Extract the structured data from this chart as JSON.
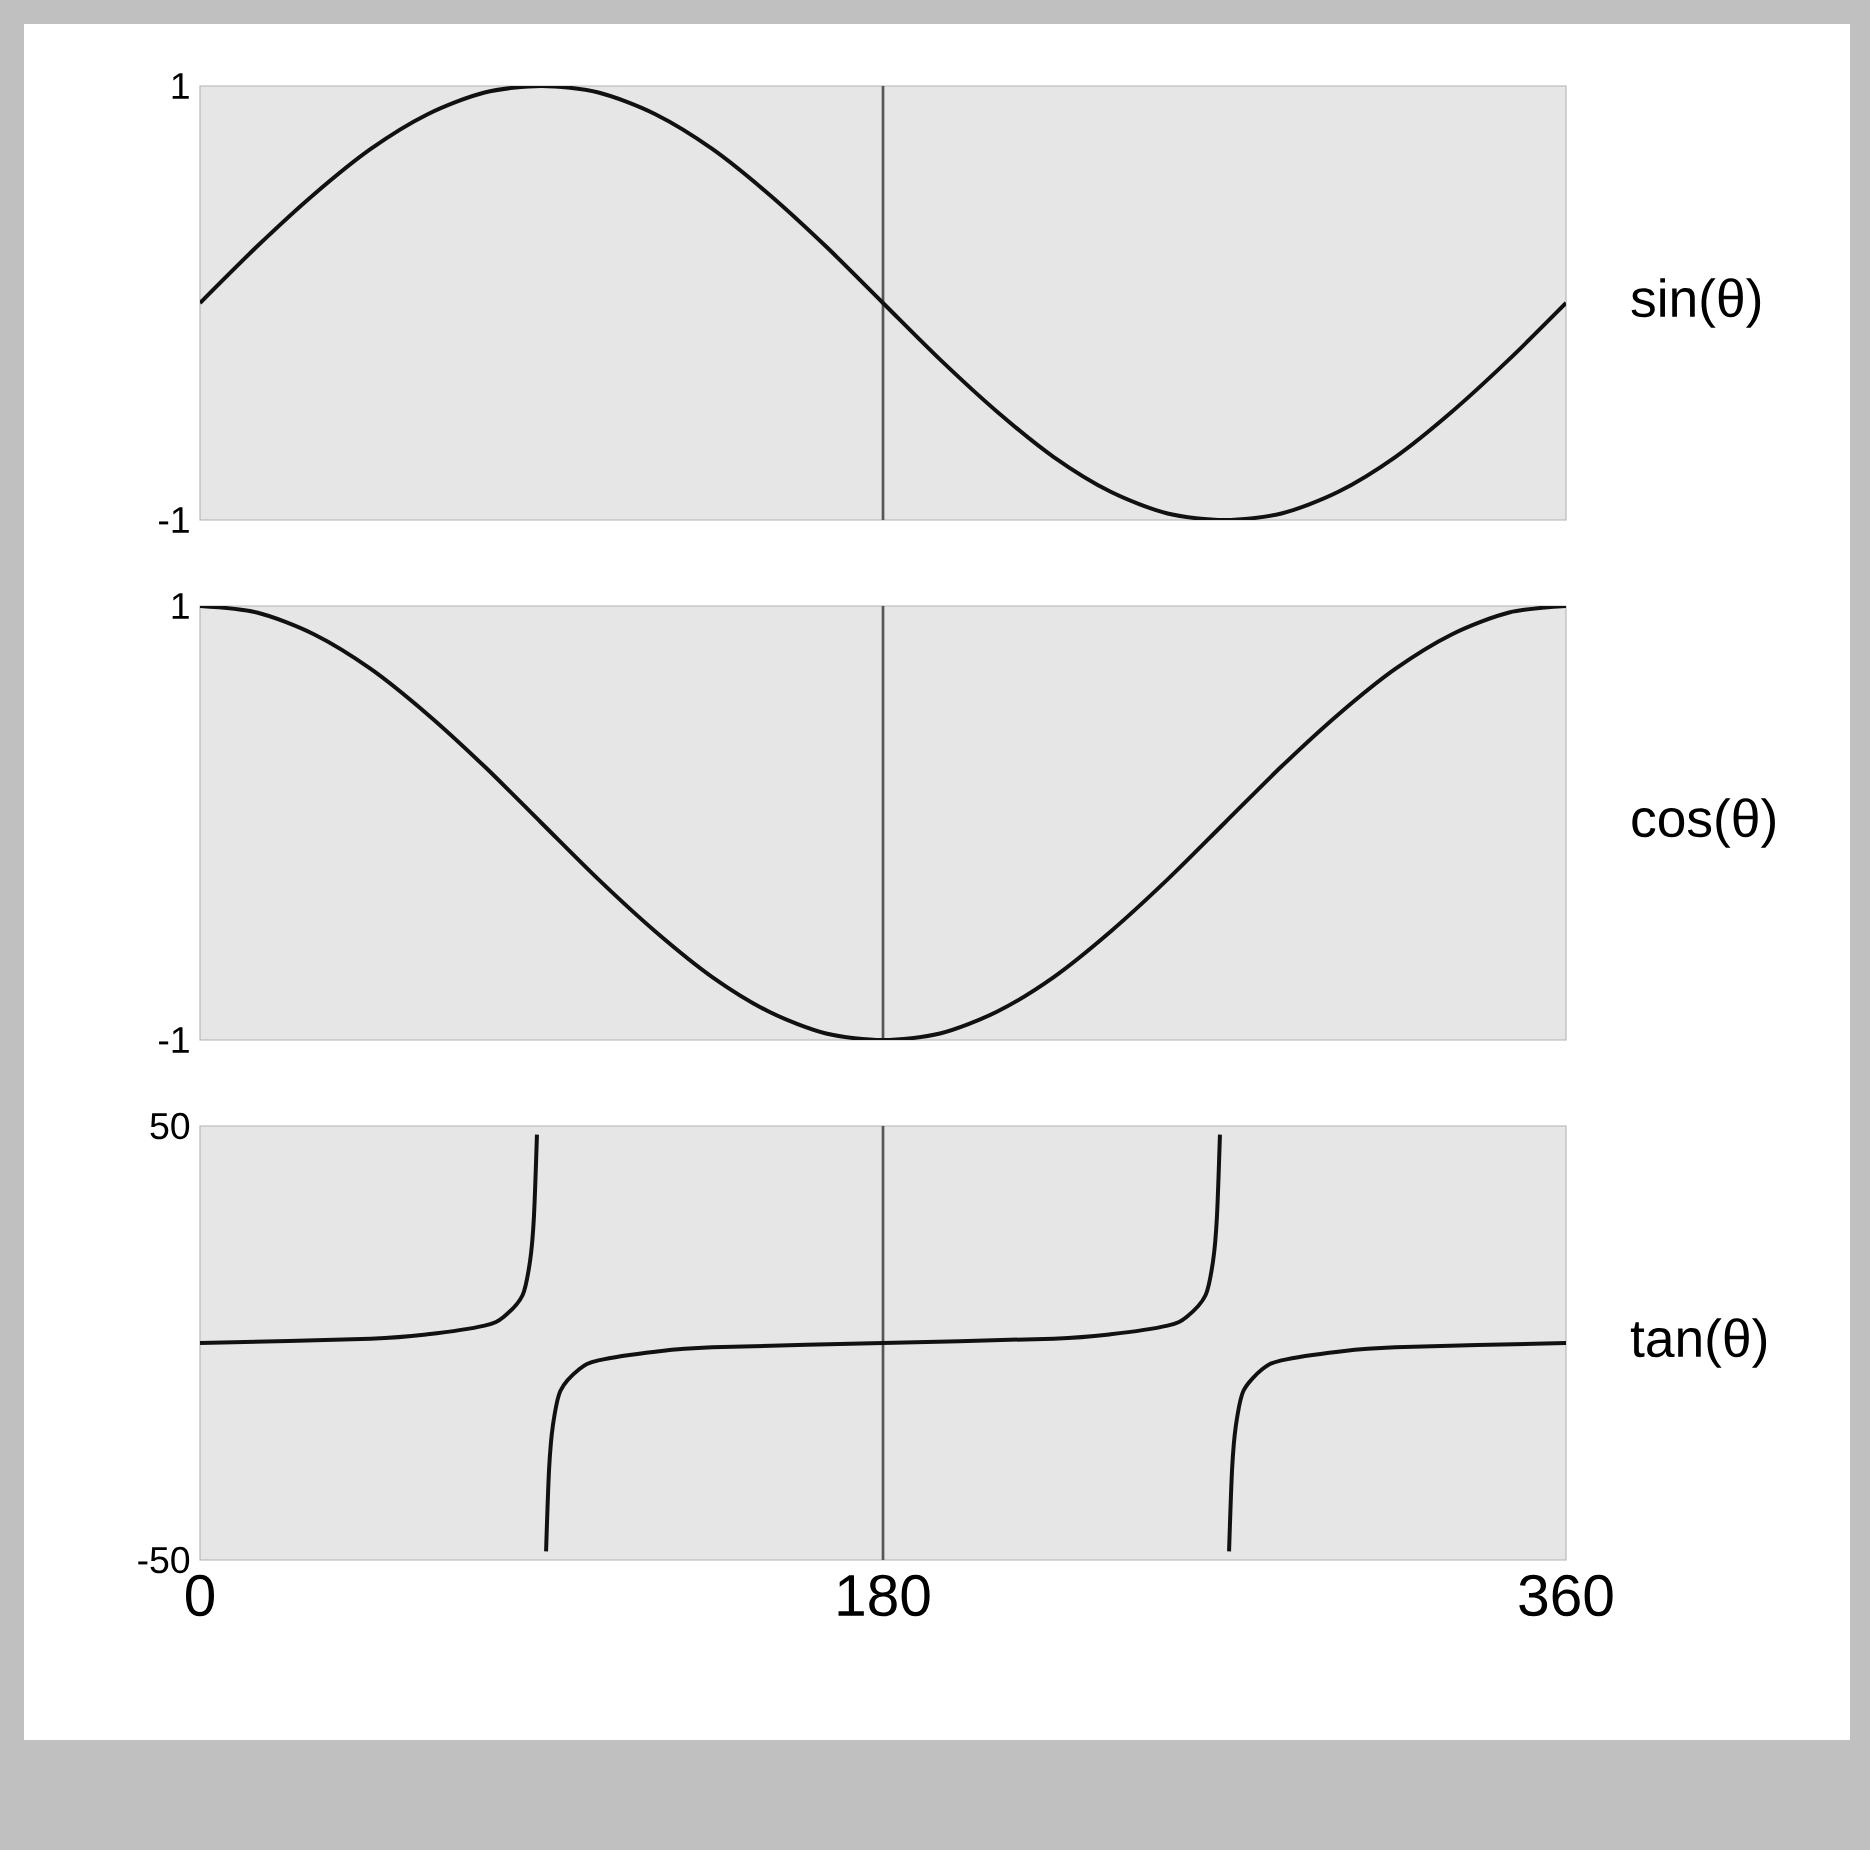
{
  "chart_data": [
    {
      "type": "line",
      "ylabel": "sin(θ)",
      "x": [
        0,
        15,
        30,
        45,
        60,
        75,
        90,
        105,
        120,
        135,
        150,
        165,
        180,
        195,
        210,
        225,
        240,
        255,
        270,
        285,
        300,
        315,
        330,
        345,
        360
      ],
      "series": [
        {
          "color": "#111111",
          "values": [
            0,
            0.26,
            0.5,
            0.71,
            0.87,
            0.97,
            1,
            0.97,
            0.87,
            0.71,
            0.5,
            0.26,
            0,
            -0.26,
            -0.5,
            -0.71,
            -0.87,
            -0.97,
            -1,
            -0.97,
            -0.87,
            -0.71,
            -0.5,
            -0.26,
            0
          ]
        }
      ],
      "xlim": [
        0,
        360
      ],
      "xticks": [
        0,
        180,
        360
      ],
      "ylim": [
        -1,
        1
      ],
      "yticks": [
        -1,
        1
      ],
      "tick_labels": "y",
      "ref_lines": [
        {
          "axis": "x",
          "value": 180,
          "color": "#555555"
        }
      ]
    },
    {
      "type": "line",
      "ylabel": "cos(θ)",
      "x": [
        0,
        15,
        30,
        45,
        60,
        75,
        90,
        105,
        120,
        135,
        150,
        165,
        180,
        195,
        210,
        225,
        240,
        255,
        270,
        285,
        300,
        315,
        330,
        345,
        360
      ],
      "series": [
        {
          "color": "#111111",
          "values": [
            1,
            0.97,
            0.87,
            0.71,
            0.5,
            0.26,
            0,
            -0.26,
            -0.5,
            -0.71,
            -0.87,
            -0.97,
            -1,
            -0.97,
            -0.87,
            -0.71,
            -0.5,
            -0.26,
            0,
            0.26,
            0.5,
            0.71,
            0.87,
            0.97,
            1
          ]
        }
      ],
      "xlim": [
        0,
        360
      ],
      "xticks": [
        0,
        180,
        360
      ],
      "ylim": [
        -1,
        1
      ],
      "yticks": [
        -1,
        1
      ],
      "tick_labels": "y",
      "ref_lines": [
        {
          "axis": "x",
          "value": 180,
          "color": "#555555"
        }
      ]
    },
    {
      "type": "line",
      "ylabel": "tan(θ)",
      "series": [
        {
          "color": "#111111",
          "x": [
            0,
            45,
            60,
            75,
            80,
            85,
            87,
            88,
            88.8,
            90,
            91.2,
            92,
            93,
            95,
            100,
            105,
            120,
            135,
            180,
            225,
            240,
            255,
            260,
            265,
            267,
            268,
            268.8,
            270,
            271.2,
            272,
            273,
            275,
            280,
            285,
            300,
            315,
            360
          ],
          "values": [
            0,
            1,
            2,
            4,
            6,
            11,
            19,
            29,
            48,
            null,
            -48,
            -29,
            -19,
            -11,
            -6,
            -4,
            -2,
            -1,
            0,
            1,
            2,
            4,
            6,
            11,
            19,
            29,
            48,
            null,
            -48,
            -29,
            -19,
            -11,
            -6,
            -4,
            -2,
            -1,
            0
          ]
        }
      ],
      "xlim": [
        0,
        360
      ],
      "xticks": [
        0,
        180,
        360
      ],
      "ylim": [
        -50,
        50
      ],
      "yticks": [
        -50,
        50
      ],
      "ref_lines": [
        {
          "axis": "x",
          "value": 180,
          "color": "#555555"
        }
      ]
    }
  ]
}
